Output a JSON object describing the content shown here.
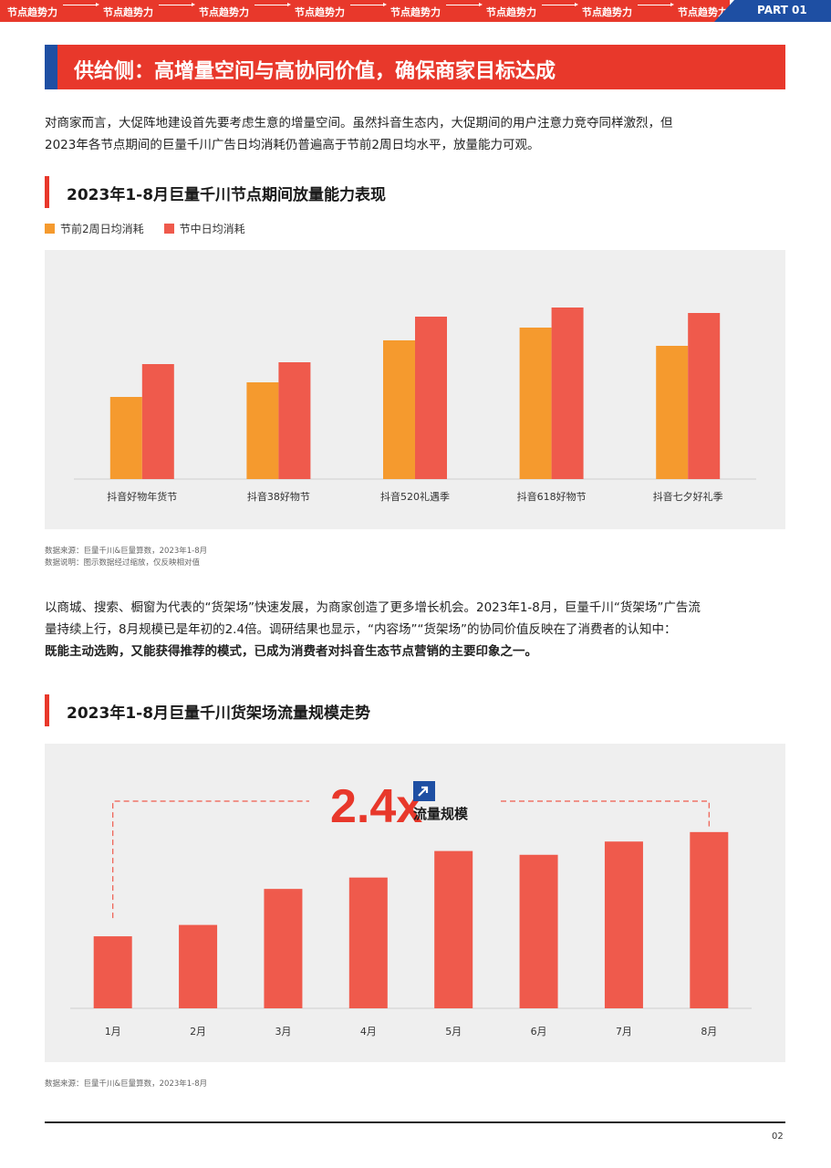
{
  "header": {
    "ticker": [
      "节点趋势力",
      "节点趋势力",
      "节点趋势力",
      "节点趋势力",
      "节点趋势力",
      "节点趋势力",
      "节点趋势力",
      "节点趋势力"
    ],
    "part": "PART 01",
    "colors": {
      "red": "#e8382b",
      "blue": "#1e4fa3"
    }
  },
  "section_title": "供给侧：高增量空间与高协同价值，确保商家目标达成",
  "intro": {
    "line1": "对商家而言，大促阵地建设首先要考虑生意的增量空间。虽然抖音生态内，大促期间的用户注意力竞夺同样激烈，但",
    "line2": "2023年各节点期间的巨量千川广告日均消耗仍普遍高于节前2周日均水平，放量能力可观。"
  },
  "chart1": {
    "heading": "2023年1-8月巨量千川节点期间放量能力表现",
    "legend": [
      "节前2周日均消耗",
      "节中日均消耗"
    ],
    "source1": "数据来源：巨量千川&巨量算数，2023年1-8月",
    "source2": "数据说明：图示数据经过缩放，仅反映相对值"
  },
  "para2": {
    "line1": "以商城、搜索、橱窗为代表的“货架场”快速发展，为商家创造了更多增长机会。2023年1-8月，巨量千川“货架场”广告流",
    "line2": "量持续上行，8月规模已是年初的2.4倍。调研结果也显示，“内容场”“货架场”的协同价值反映在了消费者的认知中：",
    "line3_bold": "既能主动选购，又能获得推荐的模式，已成为消费者对抖音生态节点营销的主要印象之一。"
  },
  "chart2": {
    "heading": "2023年1-8月巨量千川货架场流量规模走势",
    "callout_value": "2.4x",
    "callout_label": "流量规模",
    "source": "数据来源：巨量千川&巨量算数，2023年1-8月"
  },
  "chart_data": [
    {
      "type": "bar",
      "title": "2023年1-8月巨量千川节点期间放量能力表现",
      "categories": [
        "抖音好物年货节",
        "抖音38好物节",
        "抖音520礼遇季",
        "抖音618好物节",
        "抖音七夕好礼季"
      ],
      "series": [
        {
          "name": "节前2周日均消耗",
          "color": "#f59a2e",
          "values": [
            45,
            53,
            76,
            83,
            73
          ]
        },
        {
          "name": "节中日均消耗",
          "color": "#ef5a4c",
          "values": [
            63,
            64,
            89,
            94,
            91
          ]
        }
      ],
      "ylim": [
        0,
        110
      ],
      "xlabel": "",
      "ylabel": "",
      "grid": false,
      "legend": "top-left"
    },
    {
      "type": "bar",
      "title": "2023年1-8月巨量千川货架场流量规模走势",
      "categories": [
        "1月",
        "2月",
        "3月",
        "4月",
        "5月",
        "6月",
        "7月",
        "8月"
      ],
      "series": [
        {
          "name": "",
          "color": "#ef5a4c",
          "values": [
            38,
            44,
            63,
            69,
            83,
            81,
            88,
            93
          ]
        }
      ],
      "ylim": [
        0,
        130
      ],
      "xlabel": "",
      "ylabel": "",
      "grid": false
    }
  ],
  "footer": {
    "page": "02"
  }
}
